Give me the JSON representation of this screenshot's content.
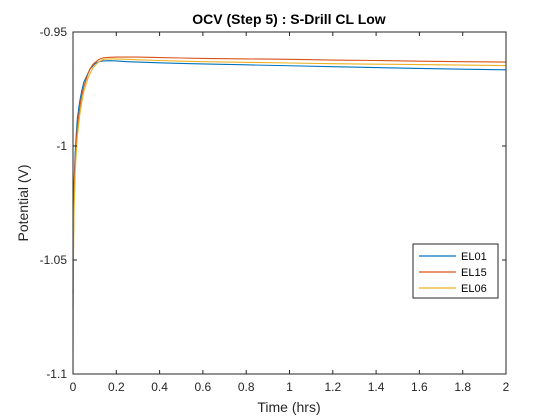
{
  "chart_data": {
    "type": "line",
    "title": "OCV (Step 5) : S-Drill CL Low",
    "xlabel": "Time (hrs)",
    "ylabel": "Potential (V)",
    "xlim": [
      0,
      2
    ],
    "ylim": [
      -1.1,
      -0.95
    ],
    "xticks": [
      0,
      0.2,
      0.4,
      0.6,
      0.8,
      1,
      1.2,
      1.4,
      1.6,
      1.8,
      2
    ],
    "xtick_labels": [
      "0",
      "0.2",
      "0.4",
      "0.6",
      "0.8",
      "1",
      "1.2",
      "1.4",
      "1.6",
      "1.8",
      "2"
    ],
    "yticks": [
      -1.1,
      -1.05,
      -1,
      -0.95
    ],
    "ytick_labels": [
      "-1.1",
      "-1.05",
      "-1",
      "-0.95"
    ],
    "grid": false,
    "legend_position": "right",
    "series": [
      {
        "name": "EL01",
        "color": "#0072BD",
        "x": [
          0,
          0.002,
          0.005,
          0.01,
          0.015,
          0.02,
          0.03,
          0.04,
          0.05,
          0.06,
          0.07,
          0.08,
          0.09,
          0.1,
          0.12,
          0.14,
          0.17,
          0.2,
          0.25,
          0.3,
          0.4,
          0.5,
          0.6,
          0.8,
          1.0,
          1.2,
          1.4,
          1.6,
          1.8,
          2.0
        ],
        "y": [
          -1.065,
          -1.035,
          -1.016,
          -1.003,
          -0.995,
          -0.988,
          -0.981,
          -0.976,
          -0.972,
          -0.97,
          -0.968,
          -0.966,
          -0.965,
          -0.964,
          -0.963,
          -0.9627,
          -0.9626,
          -0.9627,
          -0.963,
          -0.9632,
          -0.9635,
          -0.9638,
          -0.964,
          -0.9644,
          -0.9648,
          -0.9652,
          -0.9656,
          -0.966,
          -0.9663,
          -0.9666
        ]
      },
      {
        "name": "EL15",
        "color": "#D95319",
        "x": [
          0,
          0.002,
          0.005,
          0.01,
          0.015,
          0.02,
          0.03,
          0.04,
          0.05,
          0.06,
          0.07,
          0.08,
          0.09,
          0.1,
          0.12,
          0.14,
          0.17,
          0.2,
          0.25,
          0.3,
          0.4,
          0.5,
          0.6,
          0.8,
          1.0,
          1.2,
          1.4,
          1.6,
          1.8,
          2.0
        ],
        "y": [
          -1.07,
          -1.04,
          -1.02,
          -1.006,
          -0.998,
          -0.992,
          -0.984,
          -0.978,
          -0.974,
          -0.971,
          -0.968,
          -0.966,
          -0.9645,
          -0.9635,
          -0.962,
          -0.9613,
          -0.9611,
          -0.961,
          -0.961,
          -0.961,
          -0.9612,
          -0.9614,
          -0.9616,
          -0.9618,
          -0.962,
          -0.9623,
          -0.9625,
          -0.9628,
          -0.963,
          -0.9632
        ]
      },
      {
        "name": "EL06",
        "color": "#EDB120",
        "x": [
          0,
          0.002,
          0.005,
          0.01,
          0.015,
          0.02,
          0.03,
          0.04,
          0.05,
          0.06,
          0.07,
          0.08,
          0.09,
          0.1,
          0.12,
          0.14,
          0.17,
          0.2,
          0.25,
          0.3,
          0.4,
          0.5,
          0.6,
          0.8,
          1.0,
          1.2,
          1.4,
          1.6,
          1.8,
          2.0
        ],
        "y": [
          -1.1,
          -1.05,
          -1.028,
          -1.012,
          -1.003,
          -0.996,
          -0.987,
          -0.981,
          -0.976,
          -0.973,
          -0.97,
          -0.968,
          -0.966,
          -0.9648,
          -0.963,
          -0.962,
          -0.9618,
          -0.9618,
          -0.962,
          -0.9622,
          -0.9625,
          -0.9628,
          -0.963,
          -0.9633,
          -0.9636,
          -0.9639,
          -0.9641,
          -0.9643,
          -0.9645,
          -0.9647
        ]
      }
    ]
  }
}
